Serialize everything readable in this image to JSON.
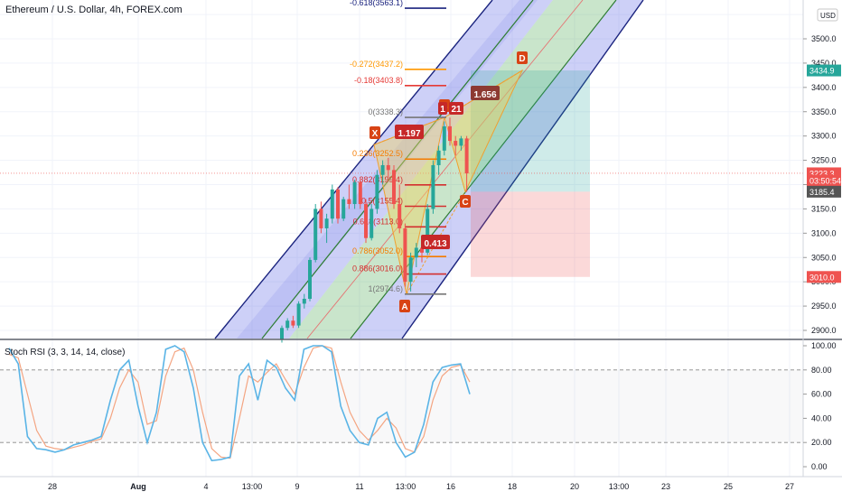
{
  "chart": {
    "title": "Ethereum / U.S. Dollar, 4h, FOREX.com",
    "currency": "USD"
  },
  "price_axis": {
    "ticks": [
      "3500.0",
      "3450.0",
      "3400.0",
      "3350.0",
      "3300.0",
      "3250.0",
      "3200.0",
      "3150.0",
      "3100.0",
      "3050.0",
      "3000.0",
      "2950.0",
      "2900.0"
    ],
    "top_partial": "35",
    "badges": [
      {
        "label": "3434.9",
        "price": 3434.9,
        "color": "#26a69a"
      },
      {
        "label": "3223.3",
        "price": 3223.3,
        "color": "#ef5350"
      },
      {
        "label": "03:50:54",
        "price": 3208,
        "color": "#ef5350"
      },
      {
        "label": "3185.4",
        "price": 3185.4,
        "color": "#555555"
      },
      {
        "label": "3010.0",
        "price": 3010.0,
        "color": "#ef5350"
      }
    ]
  },
  "time_axis": {
    "labels": [
      {
        "text": "28",
        "bold": false
      },
      {
        "text": "Aug",
        "bold": true
      },
      {
        "text": "4",
        "bold": false
      },
      {
        "text": "13:00",
        "bold": false
      },
      {
        "text": "9",
        "bold": false
      },
      {
        "text": "11",
        "bold": false
      },
      {
        "text": "13:00",
        "bold": false
      },
      {
        "text": "16",
        "bold": false
      },
      {
        "text": "18",
        "bold": false
      },
      {
        "text": "20",
        "bold": false
      },
      {
        "text": "13:00",
        "bold": false
      },
      {
        "text": "23",
        "bold": false
      },
      {
        "text": "25",
        "bold": false
      },
      {
        "text": "27",
        "bold": false
      }
    ]
  },
  "fib_levels": [
    {
      "label": "-0.618(3563.1)",
      "price": 3563.1,
      "color": "#1a237e"
    },
    {
      "label": "-0.272(3437.2)",
      "price": 3437.2,
      "color": "#ff9800"
    },
    {
      "label": "-0.18(3403.8)",
      "price": 3403.8,
      "color": "#e53935"
    },
    {
      "label": "0(3338.3)",
      "price": 3338.3,
      "color": "#777777"
    },
    {
      "label": "0.236(3252.5)",
      "price": 3252.5,
      "color": "#f57c00"
    },
    {
      "label": "0.382(3199.4)",
      "price": 3199.4,
      "color": "#d32f2f"
    },
    {
      "label": "0.5(3155.4)",
      "price": 3155.4,
      "color": "#d32f2f"
    },
    {
      "label": "0.618(3113.0)",
      "price": 3113.0,
      "color": "#d32f2f"
    },
    {
      "label": "0.786(3052.0)",
      "price": 3052.0,
      "color": "#f57c00"
    },
    {
      "label": "0.886(3016.0)",
      "price": 3016.0,
      "color": "#d32f2f"
    },
    {
      "label": "1(2974.6)",
      "price": 2974.6,
      "color": "#777777"
    }
  ],
  "pattern": {
    "points": [
      {
        "label": "X"
      },
      {
        "label": "A"
      },
      {
        "label": "B"
      },
      {
        "label": "C"
      },
      {
        "label": "D"
      }
    ],
    "ratios": [
      "1.197",
      "0.413",
      "1.656",
      "21",
      "1"
    ]
  },
  "oscillator": {
    "title": "Stoch RSI (3, 3, 14, 14, close)",
    "ticks": [
      "100.00",
      "80.00",
      "60.00",
      "40.00",
      "20.00",
      "0.00"
    ],
    "k_color": "#5ab4e6",
    "d_color": "#f4a582",
    "k": [
      98,
      85,
      25,
      15,
      14,
      12,
      14,
      18,
      20,
      22,
      25,
      55,
      80,
      88,
      50,
      20,
      45,
      97,
      100,
      95,
      65,
      20,
      5,
      6,
      8,
      75,
      85,
      55,
      88,
      82,
      65,
      55,
      97,
      100,
      100,
      95,
      50,
      30,
      20,
      18,
      40,
      45,
      20,
      8,
      12,
      35,
      70,
      82,
      84,
      85,
      60
    ],
    "d": [
      93,
      90,
      60,
      30,
      17,
      15,
      14,
      16,
      18,
      21,
      23,
      40,
      65,
      80,
      70,
      35,
      38,
      75,
      95,
      98,
      80,
      45,
      15,
      8,
      7,
      40,
      75,
      70,
      78,
      85,
      72,
      60,
      82,
      98,
      100,
      98,
      70,
      45,
      30,
      22,
      30,
      40,
      32,
      15,
      12,
      25,
      55,
      75,
      82,
      84,
      70
    ]
  },
  "chart_data": {
    "type": "candlestick",
    "title": "Ethereum / U.S. Dollar, 4h, FOREX.com",
    "ylim": [
      2890,
      3570
    ],
    "last_price": 3223.3,
    "candles": [
      [
        2882,
        2910,
        2875,
        2905
      ],
      [
        2905,
        2925,
        2900,
        2920
      ],
      [
        2920,
        2930,
        2905,
        2910
      ],
      [
        2910,
        2960,
        2905,
        2955
      ],
      [
        2955,
        2975,
        2945,
        2965
      ],
      [
        2965,
        3050,
        2960,
        3045
      ],
      [
        3045,
        3160,
        3040,
        3150
      ],
      [
        3150,
        3165,
        3100,
        3110
      ],
      [
        3110,
        3140,
        3080,
        3130
      ],
      [
        3130,
        3200,
        3120,
        3190
      ],
      [
        3190,
        3195,
        3120,
        3130
      ],
      [
        3130,
        3175,
        3125,
        3170
      ],
      [
        3170,
        3200,
        3150,
        3160
      ],
      [
        3160,
        3210,
        3150,
        3205
      ],
      [
        3205,
        3215,
        3150,
        3160
      ],
      [
        3160,
        3170,
        3080,
        3090
      ],
      [
        3090,
        3160,
        3085,
        3150
      ],
      [
        3150,
        3230,
        3140,
        3220
      ],
      [
        3220,
        3250,
        3200,
        3240
      ],
      [
        3240,
        3255,
        3215,
        3230
      ],
      [
        3230,
        3240,
        3150,
        3160
      ],
      [
        3160,
        3200,
        3100,
        3110
      ],
      [
        3110,
        3120,
        2990,
        3000
      ],
      [
        3000,
        3060,
        2980,
        3050
      ],
      [
        3050,
        3080,
        3030,
        3070
      ],
      [
        3070,
        3080,
        3040,
        3060
      ],
      [
        3060,
        3160,
        3055,
        3150
      ],
      [
        3150,
        3250,
        3140,
        3240
      ],
      [
        3240,
        3280,
        3220,
        3270
      ],
      [
        3270,
        3330,
        3260,
        3320
      ],
      [
        3320,
        3338,
        3280,
        3290
      ],
      [
        3290,
        3300,
        3260,
        3280
      ],
      [
        3280,
        3300,
        3270,
        3295
      ],
      [
        3295,
        3300,
        3185,
        3223
      ]
    ],
    "harmonic_xabcd": {
      "X": {
        "time": "Aug 11",
        "price": 3282
      },
      "A": {
        "time": "Aug 13",
        "price": 2974.6
      },
      "B": {
        "time": "Aug 15",
        "price": 3338.3
      },
      "C": {
        "time": "Aug 16",
        "price": 3185.4
      },
      "D": {
        "time": "Aug 18",
        "price": 3434.9
      }
    },
    "position": {
      "entry": 3185.4,
      "target": 3434.9,
      "stop": 3010.0
    },
    "stoch_rsi": {
      "upper_band": 80,
      "lower_band": 20
    }
  }
}
